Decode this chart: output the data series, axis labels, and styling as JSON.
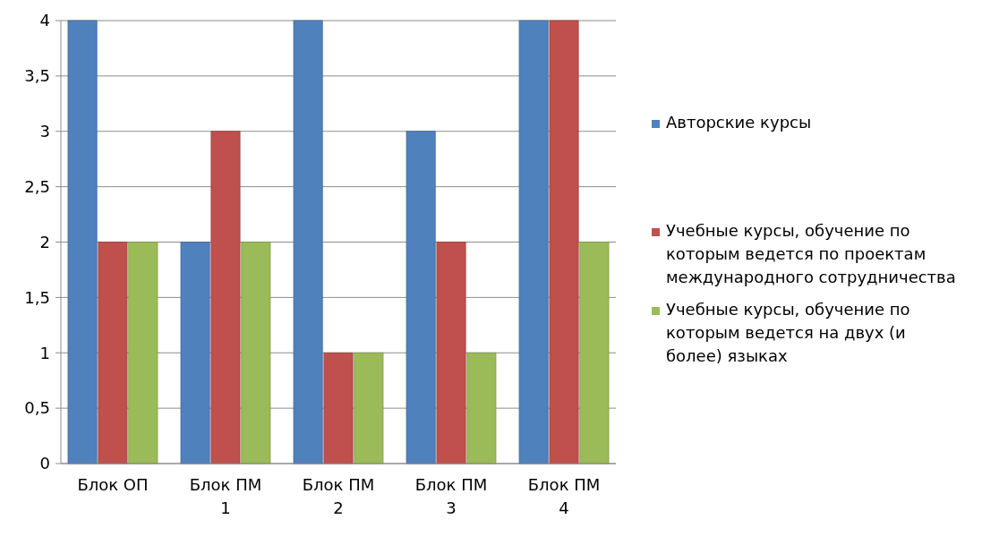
{
  "chart_data": {
    "type": "bar",
    "categories": [
      "Блок ОП",
      "Блок ПМ 1",
      "Блок ПМ 2",
      "Блок ПМ 3",
      "Блок ПМ 4"
    ],
    "series": [
      {
        "name": "Авторские курсы",
        "color": "#4f81bd",
        "values": [
          4,
          2,
          4,
          3,
          4
        ]
      },
      {
        "name": "Учебные курсы, обучение по которым ведется по проектам международного сотрудничества",
        "color": "#c0504d",
        "values": [
          2,
          3,
          1,
          2,
          4
        ]
      },
      {
        "name": "Учебные курсы, обучение по которым ведется на двух (и более) языках",
        "color": "#9bbb59",
        "values": [
          2,
          2,
          1,
          1,
          2
        ]
      }
    ],
    "ylim": [
      0,
      4
    ],
    "yticks": [
      0,
      {
        "value": 0.5,
        "label": "0,5"
      },
      1,
      {
        "value": 1.5,
        "label": "1,5"
      },
      2,
      {
        "value": 2.5,
        "label": "2,5"
      },
      3,
      {
        "value": 3.5,
        "label": "3,5"
      },
      4
    ],
    "grid": "y",
    "legend": "right"
  }
}
